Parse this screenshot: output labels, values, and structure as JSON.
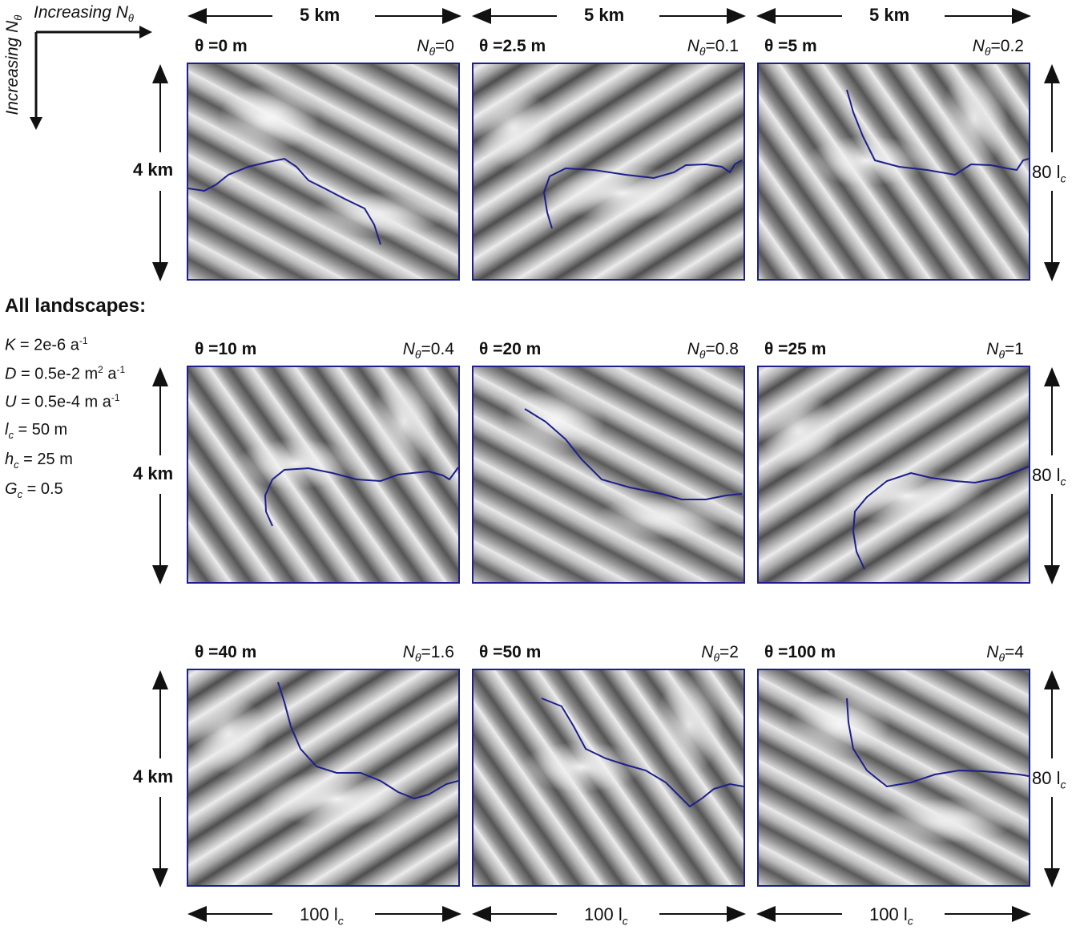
{
  "axes_labels": {
    "vertical": "Increasing N",
    "horizontal": "Increasing N",
    "subscript": "θ"
  },
  "top_width": "5 km",
  "bottom_width_value": "100 l",
  "bottom_width_sub": "c",
  "left_height": "4 km",
  "right_height_value": "80 l",
  "right_height_sub": "c",
  "all_title": "All landscapes:",
  "params": {
    "K": {
      "sym": "K",
      "eq": " = 2e-6 a",
      "sup": "-1"
    },
    "D": {
      "sym": "D",
      "eq": " = 0.5e-2 m",
      "sup1": "2",
      "mid": " a",
      "sup2": "-1"
    },
    "U": {
      "sym": "U",
      "eq": " = 0.5e-4 m a",
      "sup": "-1"
    },
    "lc": {
      "sym": "l",
      "sub": "c",
      "eq": " = 50 m"
    },
    "hc": {
      "sym": "h",
      "sub": "c",
      "eq": " = 25 m"
    },
    "Gc": {
      "sym": "G",
      "sub": "c",
      "eq": " = 0.5"
    }
  },
  "ntheta_prefix": "N",
  "ntheta_sub": "θ",
  "panels": [
    {
      "theta": "θ =0 m",
      "ntheta": "=0"
    },
    {
      "theta": "θ =2.5 m",
      "ntheta": "=0.1"
    },
    {
      "theta": "θ =5 m",
      "ntheta": "=0.2"
    },
    {
      "theta": "θ =10 m",
      "ntheta": "=0.4"
    },
    {
      "theta": "θ =20 m",
      "ntheta": "=0.8"
    },
    {
      "theta": "θ =25 m",
      "ntheta": "=1"
    },
    {
      "theta": "θ =40 m",
      "ntheta": "=1.6"
    },
    {
      "theta": "θ =50 m",
      "ntheta": "=2"
    },
    {
      "theta": "θ =100 m",
      "ntheta": "=4"
    }
  ],
  "colors": {
    "frame": "#1c1f8c",
    "river": "#1c1f8c"
  }
}
